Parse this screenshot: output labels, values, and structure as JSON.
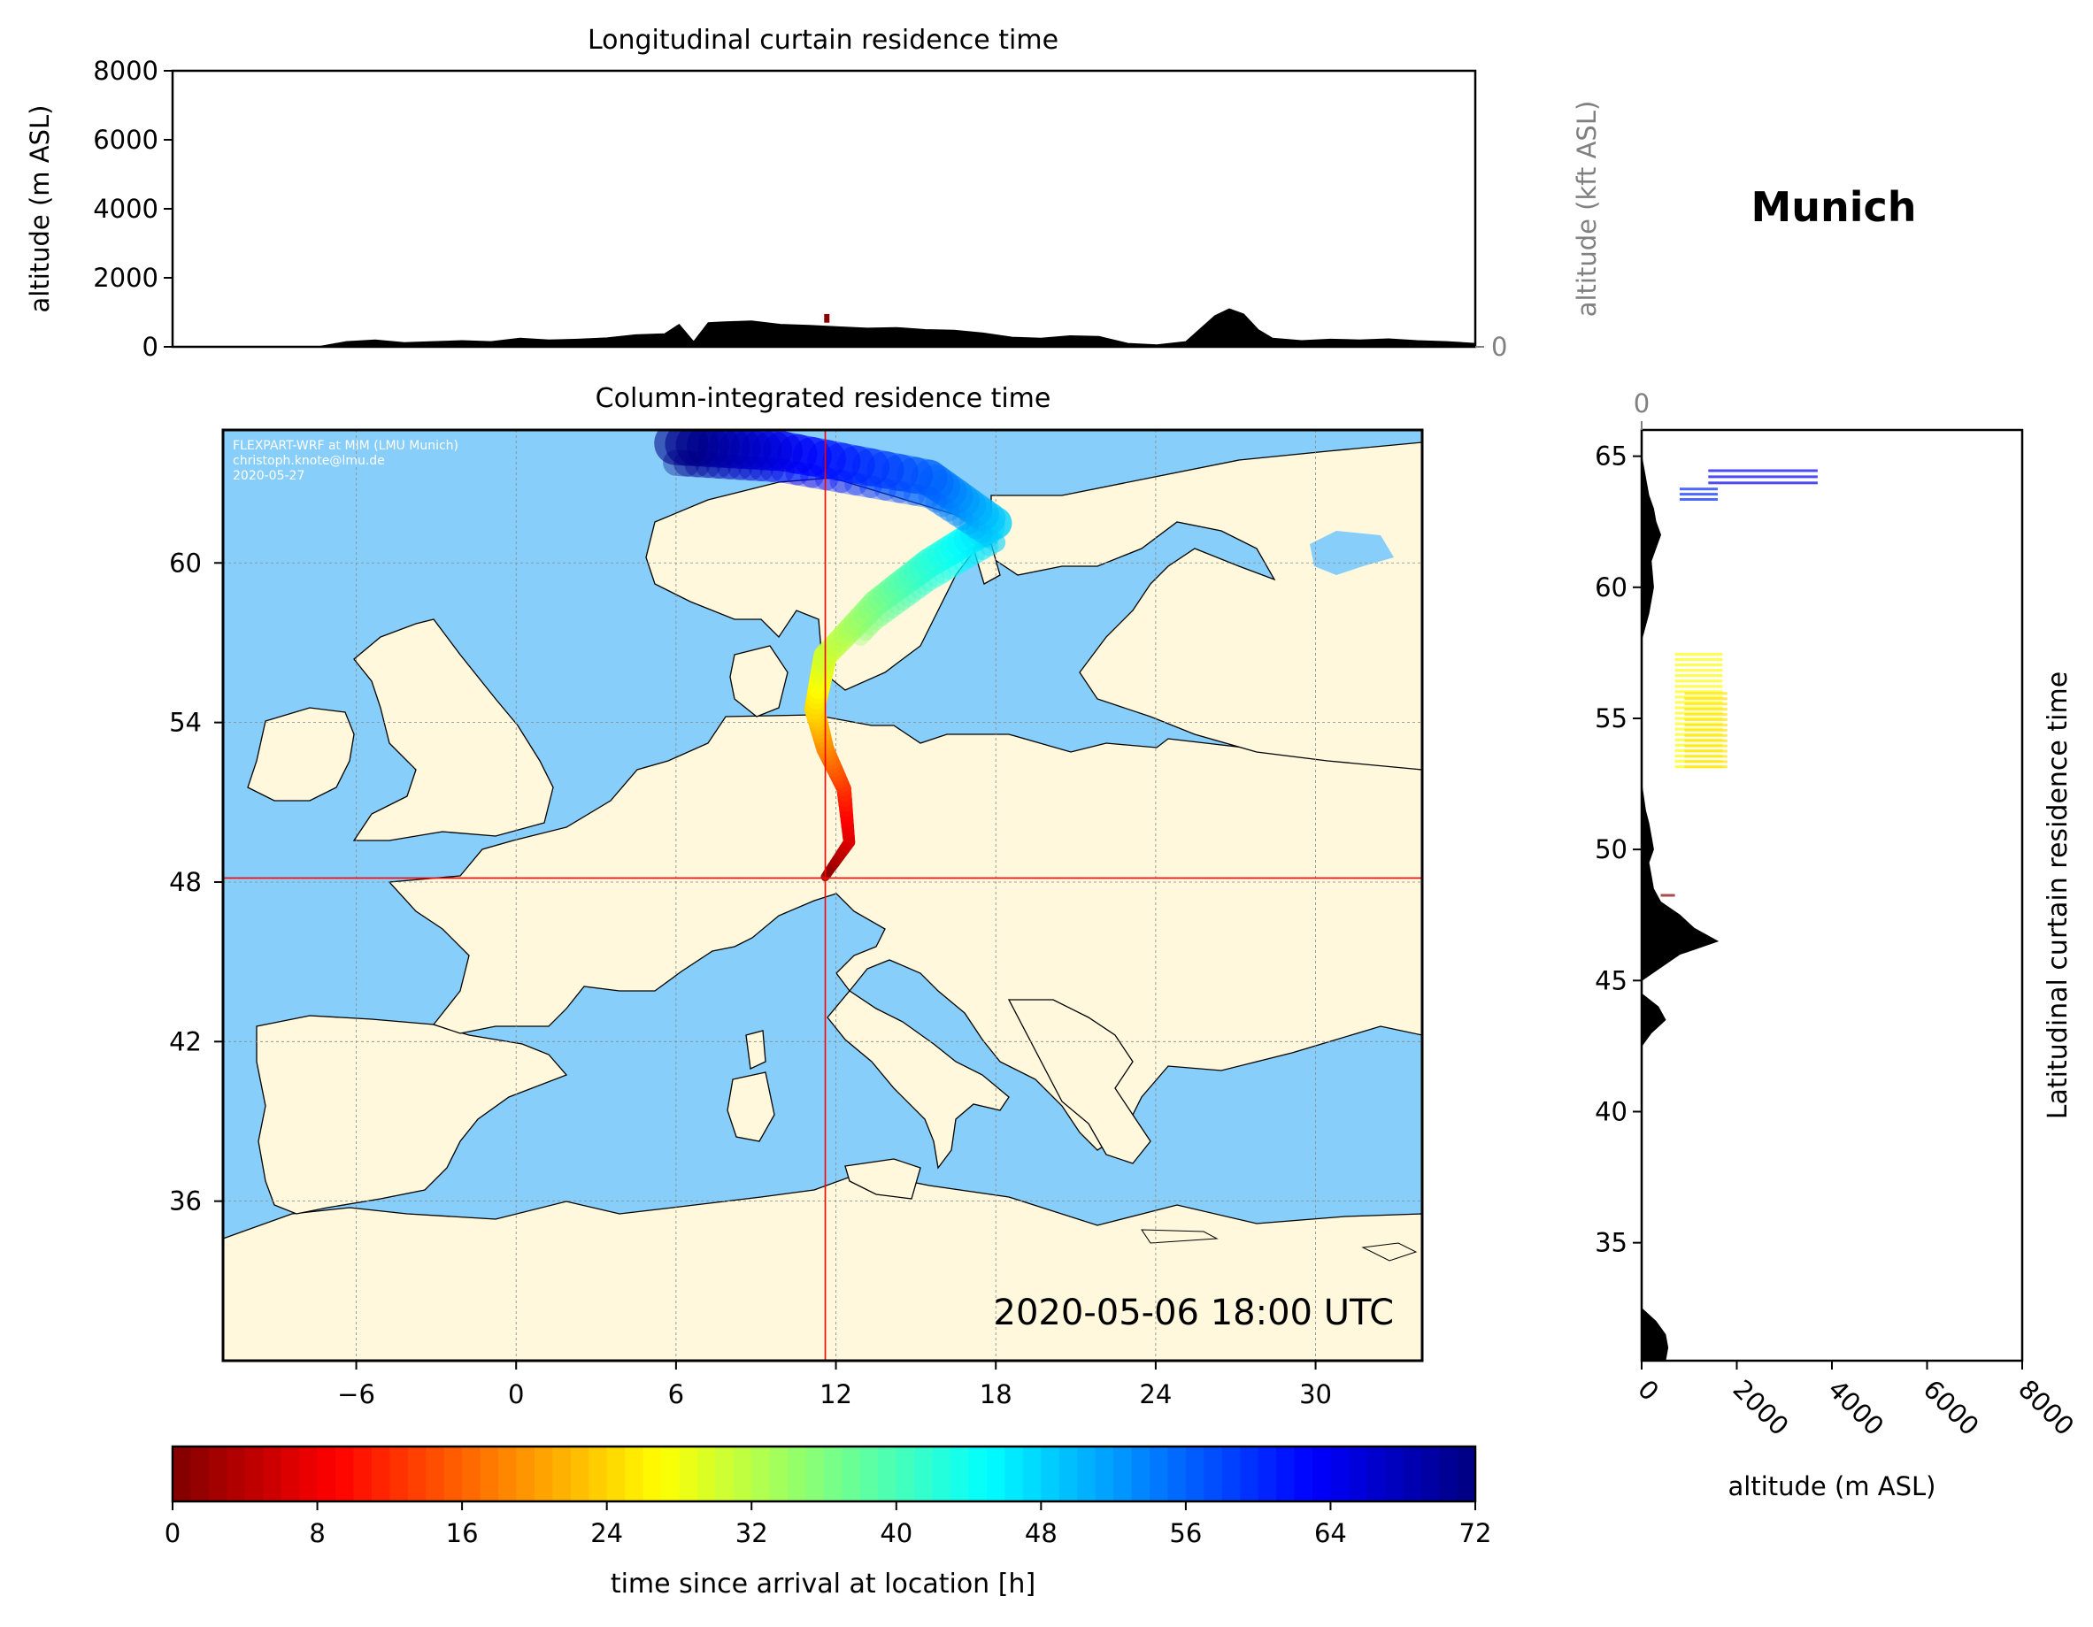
{
  "figure": {
    "location_name": "Munich",
    "timestamp": "2020-05-06 18:00 UTC",
    "credits": [
      "FLEXPART-WRF at MIM (LMU Munich)",
      "christoph.knote@lmu.de",
      "2020-05-27"
    ]
  },
  "chart_data": [
    {
      "type": "area",
      "title": "Longitudinal curtain residence time",
      "ylabel": "altitude (m ASL)",
      "ylabel_right": "altitude (kft ASL)",
      "ylim": [
        0,
        8000
      ],
      "yticks": [
        0,
        2000,
        4000,
        6000,
        8000
      ],
      "yticks_right": [
        0,
        50,
        100
      ],
      "xlim": [
        -11,
        34
      ],
      "grid": true,
      "terrain_profile": {
        "x": [
          -11,
          -6,
          -5,
          -4,
          -3,
          -2,
          -1,
          0,
          1,
          2,
          3,
          4,
          5,
          6,
          6.5,
          7,
          7.5,
          8,
          9,
          10,
          11,
          12,
          13,
          14,
          15,
          16,
          17,
          18,
          19,
          20,
          21,
          22,
          23,
          24,
          25,
          25.5,
          26,
          26.5,
          27,
          28,
          29,
          30,
          31,
          32,
          33,
          34
        ],
        "y": [
          0,
          0,
          150,
          200,
          120,
          150,
          180,
          150,
          250,
          200,
          220,
          260,
          350,
          380,
          650,
          150,
          700,
          720,
          750,
          650,
          620,
          580,
          540,
          560,
          500,
          480,
          400,
          280,
          250,
          320,
          300,
          100,
          60,
          150,
          900,
          1100,
          950,
          500,
          250,
          180,
          220,
          200,
          230,
          180,
          150,
          100
        ]
      },
      "residence_marks": [
        {
          "x": 11.6,
          "ymin": 700,
          "ymax": 950,
          "hours": 1,
          "color": "#8b0000"
        }
      ]
    },
    {
      "type": "heatmap",
      "title": "Column-integrated residence time",
      "xlim": [
        -11,
        34
      ],
      "ylim": [
        30,
        65
      ],
      "xticks": [
        -6,
        0,
        6,
        12,
        18,
        24,
        30
      ],
      "yticks": [
        36,
        42,
        48,
        54,
        60
      ],
      "location": {
        "lon": 11.6,
        "lat": 48.15
      },
      "colors": {
        "ocean": "#87cefa",
        "land": "#fff8dc",
        "crosshair": "#ff0000"
      },
      "trajectory": [
        {
          "lon": 11.6,
          "lat": 48.2,
          "hours": 0
        },
        {
          "lon": 12.5,
          "lat": 49.5,
          "hours": 6
        },
        {
          "lon": 12.3,
          "lat": 51.5,
          "hours": 12
        },
        {
          "lon": 11.6,
          "lat": 53.0,
          "hours": 18
        },
        {
          "lon": 11.2,
          "lat": 54.5,
          "hours": 24
        },
        {
          "lon": 11.6,
          "lat": 56.5,
          "hours": 30
        },
        {
          "lon": 13.5,
          "lat": 58.5,
          "hours": 36
        },
        {
          "lon": 15.5,
          "lat": 60.0,
          "hours": 42
        },
        {
          "lon": 18.0,
          "lat": 61.5,
          "hours": 48
        },
        {
          "lon": 15.5,
          "lat": 63.2,
          "hours": 56
        },
        {
          "lon": 10.0,
          "lat": 64.2,
          "hours": 64
        },
        {
          "lon": 6.0,
          "lat": 64.5,
          "hours": 72
        }
      ]
    },
    {
      "type": "area",
      "title": "Latitudinal curtain residence time",
      "xlabel": "altitude (m ASL)",
      "xlim": [
        0,
        8000
      ],
      "xticks": [
        0,
        2000,
        4000,
        6000,
        8000
      ],
      "xticks_top": [
        0,
        50,
        100
      ],
      "ylim": [
        30.5,
        66
      ],
      "yticks": [
        35,
        40,
        45,
        50,
        55,
        60,
        65
      ],
      "terrain_profile": {
        "lat": [
          30.5,
          31.0,
          31.5,
          32.0,
          32.5,
          42.5,
          43.0,
          43.5,
          44.0,
          44.5,
          45.0,
          45.5,
          46.0,
          46.5,
          47.0,
          47.5,
          48.0,
          48.5,
          49.0,
          49.5,
          50.0,
          50.5,
          51.0,
          51.5,
          52.5,
          53.5,
          58.0,
          59.0,
          60.0,
          61.0,
          62.0,
          62.5,
          63.0,
          63.5,
          64.0,
          64.5,
          65.0,
          66.0
        ],
        "alt": [
          500,
          550,
          500,
          300,
          0,
          0,
          200,
          500,
          350,
          0,
          0,
          400,
          800,
          1600,
          1100,
          800,
          400,
          250,
          200,
          150,
          250,
          200,
          150,
          80,
          0,
          0,
          0,
          150,
          250,
          200,
          400,
          300,
          250,
          150,
          100,
          50,
          0,
          0
        ]
      },
      "residence_blocks": [
        {
          "lat_min": 48.1,
          "lat_max": 48.3,
          "alt_min": 400,
          "alt_max": 700,
          "hours": 0
        },
        {
          "lat_min": 53.0,
          "lat_max": 57.5,
          "alt_min": 700,
          "alt_max": 1700,
          "hours": 27
        },
        {
          "lat_min": 53.0,
          "lat_max": 56.0,
          "alt_min": 900,
          "alt_max": 1800,
          "hours": 25
        },
        {
          "lat_min": 63.2,
          "lat_max": 63.8,
          "alt_min": 800,
          "alt_max": 1600,
          "hours": 60
        },
        {
          "lat_min": 63.8,
          "lat_max": 64.5,
          "alt_min": 1400,
          "alt_max": 3700,
          "hours": 64
        }
      ]
    },
    {
      "type": "colorbar",
      "label": "time since arrival at location [h]",
      "range": [
        0,
        72
      ],
      "ticks": [
        0,
        8,
        16,
        24,
        32,
        40,
        48,
        56,
        64,
        72
      ],
      "colormap": "jet_r"
    }
  ]
}
